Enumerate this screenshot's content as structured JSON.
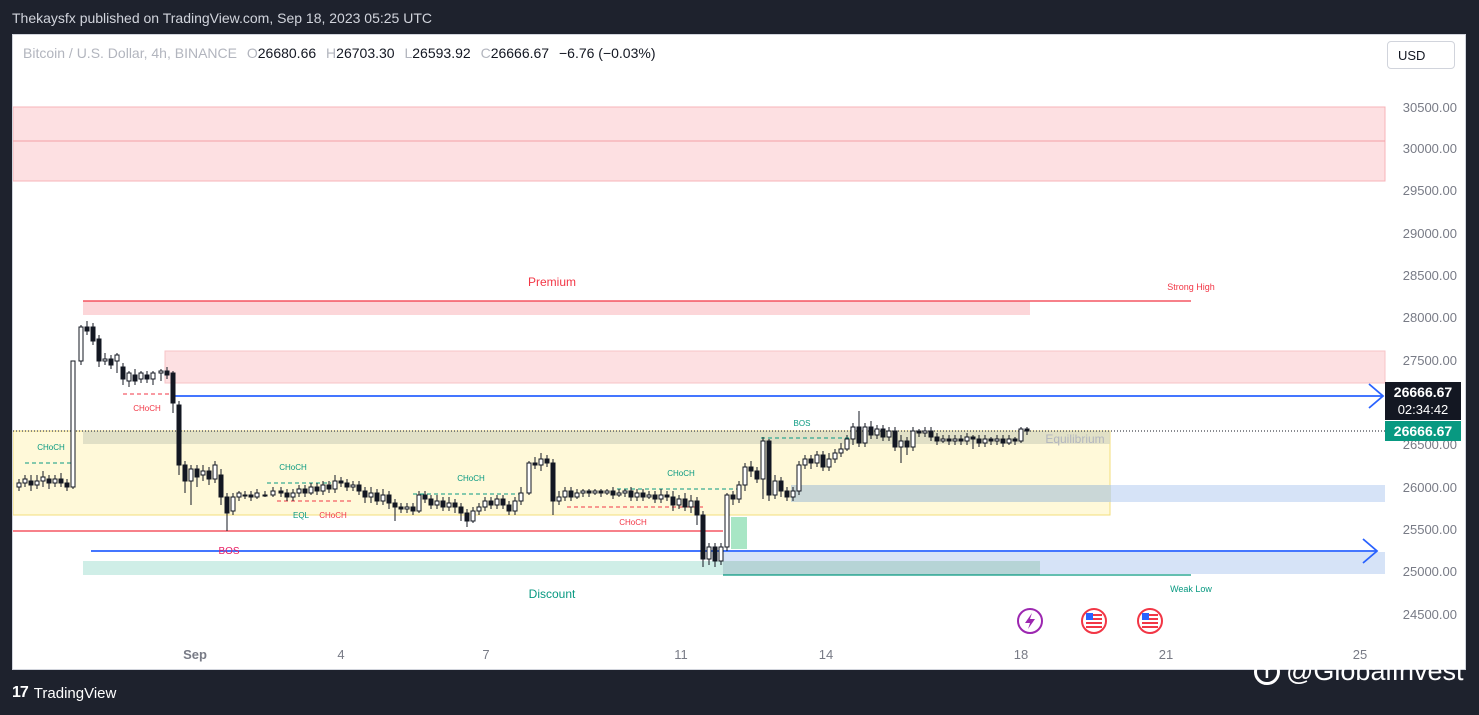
{
  "header": {
    "publisher_line": "Thekaysfx published on TradingView.com, Sep 18, 2023 05:25 UTC"
  },
  "legend": {
    "symbol": "Bitcoin / U.S. Dollar, 4h, BINANCE",
    "o_label": "O",
    "o_value": "26680.66",
    "h_label": "H",
    "h_value": "26703.30",
    "l_label": "L",
    "l_value": "26593.92",
    "c_label": "C",
    "c_value": "26666.67",
    "change": "−6.76 (−0.03%)"
  },
  "currency_button": "USD",
  "price_axis": {
    "ticks": [
      "30500.00",
      "30000.00",
      "29500.00",
      "29000.00",
      "28500.00",
      "28000.00",
      "27500.00",
      "26500.00",
      "26000.00",
      "25500.00",
      "25000.00",
      "24500.00"
    ],
    "last_price_label": "26666.67",
    "countdown": "02:34:42",
    "close_label": "26666.67"
  },
  "time_axis": {
    "ticks": [
      "Sep",
      "4",
      "7",
      "11",
      "14",
      "18",
      "21",
      "25"
    ]
  },
  "zone_labels": {
    "premium": "Premium",
    "discount": "Discount",
    "equilibrium": "Equilibrium",
    "strong_high": "Strong High",
    "weak_low": "Weak Low"
  },
  "structure_labels": {
    "choch_1": "CHoCH",
    "choch_2": "CHoCH",
    "choch_3": "CHoCH",
    "choch_4": "CHoCH",
    "choch_5": "CHoCH",
    "choch_6": "CHoCH",
    "choch_7": "CHoCH",
    "bos_1": "BOS",
    "bos_2": "BOS",
    "eql": "EQL"
  },
  "colors": {
    "bearish_zone": "#f7a1a8",
    "bullish_zone": "#7fd3c3",
    "equilibrium_zone": "#fff59d",
    "blue_line": "#2962ff",
    "red_line": "#f23645",
    "teal_label": "#089981"
  },
  "event_icons": [
    "lightning-event-icon",
    "us-flag-event-icon",
    "us-flag-event-icon"
  ],
  "footer": {
    "brand": "TradingView",
    "brand_mark": "17",
    "watermark": "@GlobalInvest",
    "watermark_icon": "f"
  }
}
